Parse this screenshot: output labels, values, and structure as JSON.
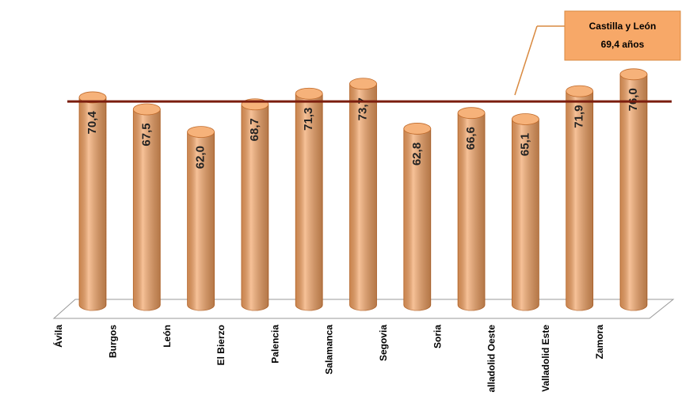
{
  "chart_data": {
    "type": "bar",
    "categories": [
      "Ávila",
      "Burgos",
      "León",
      "El Bierzo",
      "Palencia",
      "Salamanca",
      "Segovia",
      "Soria",
      "Valladolid Oeste",
      "Valladolid Este",
      "Zamora"
    ],
    "values": [
      70.4,
      67.5,
      62.0,
      68.7,
      71.3,
      73.7,
      62.8,
      66.6,
      65.1,
      71.9,
      76.0
    ],
    "value_labels": [
      "70,4",
      "67,5",
      "62,0",
      "68,7",
      "71,3",
      "73,7",
      "62,8",
      "66,6",
      "65,1",
      "71,9",
      "76,0"
    ],
    "color": "#f2a060",
    "ylim": [
      20,
      80
    ],
    "reference_line": {
      "value": 69.4,
      "name": "Castilla y León",
      "label": "69,4 años",
      "color": "#7b1d0e"
    }
  }
}
